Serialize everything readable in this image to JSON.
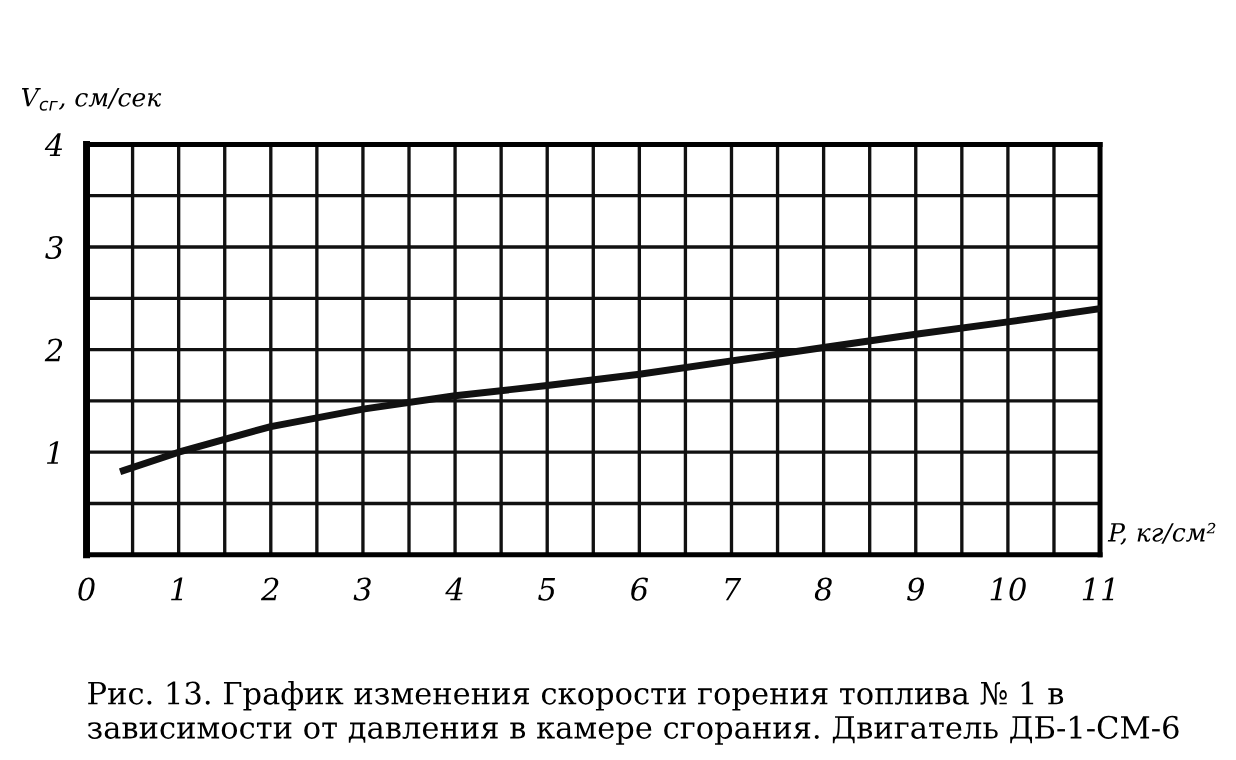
{
  "chart_data": {
    "type": "line",
    "xlabel": "P, кг/см²",
    "ylabel": "V$_{сг}$, см/сек",
    "x": [
      0.4,
      1,
      2,
      3,
      4,
      5,
      6,
      7,
      8,
      9,
      10,
      11
    ],
    "series": [
      {
        "color": "#111111",
        "values": [
          0.82,
          1.0,
          1.25,
          1.42,
          1.55,
          1.65,
          1.76,
          1.89,
          2.02,
          2.15,
          2.27,
          2.4
        ]
      }
    ],
    "xlim": [
      0,
      11
    ],
    "ylim": [
      0,
      4
    ],
    "xticks": [
      0,
      {
        "value": 0.5,
        "label": null
      },
      1,
      {
        "value": 1.5,
        "label": null
      },
      2,
      {
        "value": 2.5,
        "label": null
      },
      3,
      {
        "value": 3.5,
        "label": null
      },
      4,
      {
        "value": 4.5,
        "label": null
      },
      5,
      {
        "value": 5.5,
        "label": null
      },
      6,
      {
        "value": 6.5,
        "label": null
      },
      7,
      {
        "value": 7.5,
        "label": null
      },
      8,
      {
        "value": 8.5,
        "label": null
      },
      9,
      {
        "value": 9.5,
        "label": null
      },
      10,
      {
        "value": 10.5,
        "label": null
      },
      11
    ],
    "yticks": [
      {
        "value": 0.5,
        "label": null
      },
      1,
      {
        "value": 1.5,
        "label": null
      },
      2,
      {
        "value": 2.5,
        "label": null
      },
      3,
      {
        "value": 3.5,
        "label": null
      },
      4
    ],
    "grid": true,
    "marker": "none",
    "line_style": "solid",
    "annotations": [
      "Рис. 13. График изменения скорости горения топлива № 1 в зависимости от давления в камере сгорания. Двигатель ДБ-1-СМ-6"
    ]
  }
}
